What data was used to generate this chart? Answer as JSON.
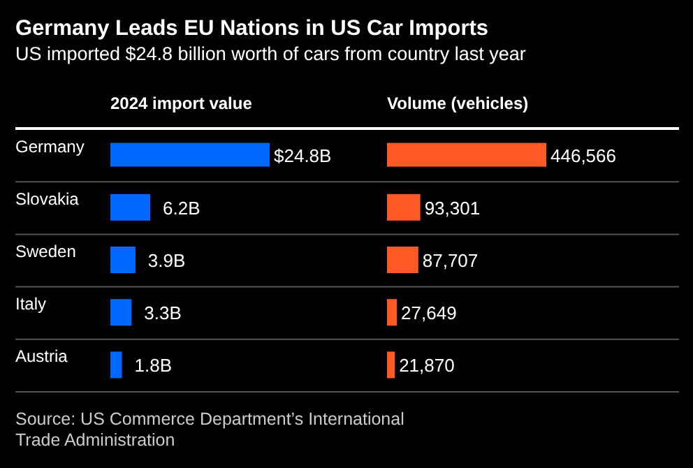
{
  "chart_data": [
    {
      "type": "bar",
      "orientation": "horizontal",
      "title": "Germany Leads EU Nations in US Car Imports",
      "subtitle": "US imported $24.8 billion worth of cars from country last year",
      "xlabel": "2024 import value",
      "categories": [
        "Germany",
        "Slovakia",
        "Sweden",
        "Italy",
        "Austria"
      ],
      "values": [
        24.8,
        6.2,
        3.9,
        3.3,
        1.8
      ],
      "color": "#0068ff",
      "value_labels": [
        "$24.8B",
        "6.2B",
        "3.9B",
        "3.3B",
        "1.8B"
      ],
      "tick_labels": "y",
      "annotations": [
        "Source: US Commerce Department’s International Trade Administration"
      ]
    },
    {
      "type": "bar",
      "orientation": "horizontal",
      "xlabel": "Volume (vehicles)",
      "categories": [
        "Germany",
        "Slovakia",
        "Sweden",
        "Italy",
        "Austria"
      ],
      "values": [
        446566,
        93301,
        87707,
        27649,
        21870
      ],
      "color": "#ff5a26",
      "value_labels": [
        "446,566",
        "93,301",
        "87,707",
        "27,649",
        "21,870"
      ],
      "tick_labels": false
    }
  ]
}
